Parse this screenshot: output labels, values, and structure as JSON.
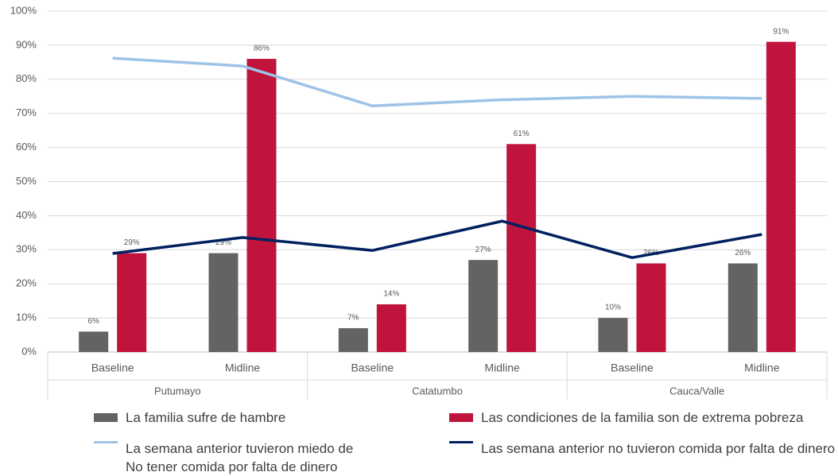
{
  "chart_data": {
    "type": "bar",
    "categories": [
      "Baseline",
      "Midline",
      "Baseline",
      "Midline",
      "Baseline",
      "Midline"
    ],
    "groups": [
      "Putumayo",
      "Catatumbo",
      "Cauca/Valle"
    ],
    "series": [
      {
        "name": "La familia sufre de hambre",
        "type": "bar",
        "color": "#636363",
        "values": [
          6,
          29,
          7,
          27,
          10,
          26
        ],
        "value_labels": [
          "6%",
          "29%",
          "7%",
          "27%",
          "10%",
          "26%"
        ]
      },
      {
        "name": "Las condiciones de la familia son de extrema pobreza",
        "type": "bar",
        "color": "#c0143c",
        "values": [
          29,
          86,
          14,
          61,
          26,
          91
        ],
        "value_labels": [
          "29%",
          "86%",
          "14%",
          "61%",
          "26%",
          "91%"
        ]
      },
      {
        "name": "La semana anterior tuvieron miedo de No tener comida por falta de dinero",
        "type": "line",
        "color": "#9dc3e6",
        "values": [
          86.2,
          83.9,
          72.2,
          74.0,
          75.0,
          74.4
        ]
      },
      {
        "name": "Las semana anterior no tuvieron comida por falta de dinero",
        "type": "line",
        "color": "#002060",
        "values": [
          28.9,
          33.6,
          29.8,
          38.4,
          27.7,
          34.5
        ]
      }
    ],
    "ylim": [
      0,
      100
    ],
    "yticks": [
      {
        "value": 0,
        "label": "0%"
      },
      {
        "value": 10,
        "label": "10%"
      },
      {
        "value": 20,
        "label": "20%"
      },
      {
        "value": 30,
        "label": "30%"
      },
      {
        "value": 40,
        "label": "40%"
      },
      {
        "value": 50,
        "label": "50%"
      },
      {
        "value": 60,
        "label": "60%"
      },
      {
        "value": 70,
        "label": "70%"
      },
      {
        "value": 80,
        "label": "80%"
      },
      {
        "value": 90,
        "label": "90%"
      },
      {
        "value": 100,
        "label": "100%"
      }
    ],
    "grid": true,
    "legend": "bottom"
  }
}
